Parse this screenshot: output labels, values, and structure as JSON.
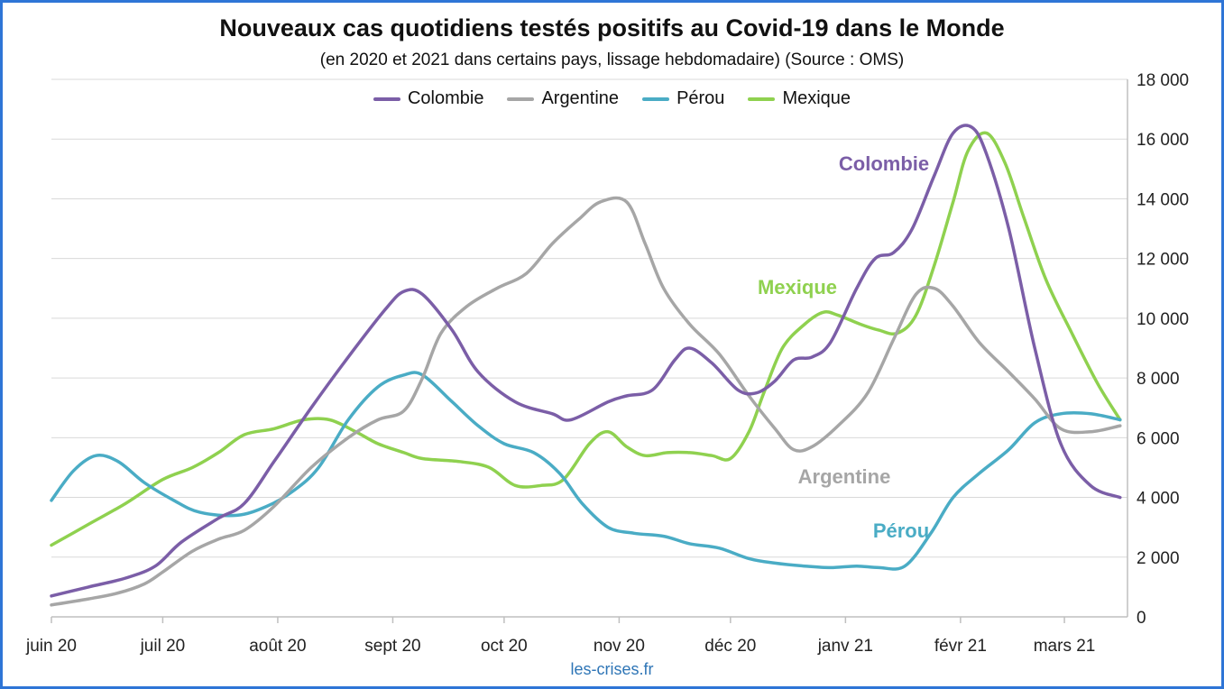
{
  "chart_data": {
    "type": "line",
    "title": "Nouveaux cas quotidiens testés positifs au Covid-19 dans le Monde",
    "subtitle": "(en 2020 et 2021 dans certains pays, lissage hebdomadaire) (Source : OMS)",
    "source_footer": "les-crises.fr",
    "x_tick_labels": [
      "juin 20",
      "juil 20",
      "août 20",
      "sept 20",
      "oct 20",
      "nov 20",
      "déc 20",
      "janv 21",
      "févr 21",
      "mars 21"
    ],
    "x_range_days": [
      0,
      290
    ],
    "x_tick_positions_days": [
      0,
      30,
      61,
      92,
      122,
      153,
      183,
      214,
      245,
      273
    ],
    "ylim": [
      0,
      18000
    ],
    "y_ticks": [
      0,
      2000,
      4000,
      6000,
      8000,
      10000,
      12000,
      14000,
      16000,
      18000
    ],
    "y_tick_labels": [
      "0",
      "2 000",
      "4 000",
      "6 000",
      "8 000",
      "10 000",
      "12 000",
      "14 000",
      "16 000",
      "18 000"
    ],
    "y_axis_side": "right",
    "grid": true,
    "legend_position": "top",
    "series": [
      {
        "name": "Colombie",
        "color": "#7b5ea7",
        "label": "Colombie",
        "points": [
          [
            0,
            700
          ],
          [
            10,
            1000
          ],
          [
            20,
            1300
          ],
          [
            28,
            1700
          ],
          [
            35,
            2500
          ],
          [
            45,
            3300
          ],
          [
            52,
            3800
          ],
          [
            60,
            5200
          ],
          [
            70,
            7000
          ],
          [
            80,
            8700
          ],
          [
            90,
            10300
          ],
          [
            95,
            10900
          ],
          [
            100,
            10800
          ],
          [
            108,
            9600
          ],
          [
            115,
            8200
          ],
          [
            125,
            7200
          ],
          [
            135,
            6800
          ],
          [
            140,
            6600
          ],
          [
            150,
            7200
          ],
          [
            155,
            7400
          ],
          [
            162,
            7600
          ],
          [
            168,
            8600
          ],
          [
            172,
            9000
          ],
          [
            178,
            8500
          ],
          [
            185,
            7600
          ],
          [
            190,
            7500
          ],
          [
            195,
            7900
          ],
          [
            200,
            8600
          ],
          [
            205,
            8700
          ],
          [
            210,
            9200
          ],
          [
            217,
            11000
          ],
          [
            222,
            12000
          ],
          [
            227,
            12200
          ],
          [
            232,
            13000
          ],
          [
            238,
            14800
          ],
          [
            243,
            16200
          ],
          [
            248,
            16400
          ],
          [
            252,
            15500
          ],
          [
            258,
            13000
          ],
          [
            265,
            9000
          ],
          [
            272,
            5800
          ],
          [
            280,
            4400
          ],
          [
            288,
            4000
          ]
        ]
      },
      {
        "name": "Argentine",
        "color": "#a6a6a6",
        "label": "Argentine",
        "points": [
          [
            0,
            400
          ],
          [
            10,
            600
          ],
          [
            18,
            800
          ],
          [
            25,
            1100
          ],
          [
            30,
            1500
          ],
          [
            38,
            2200
          ],
          [
            45,
            2600
          ],
          [
            52,
            2900
          ],
          [
            60,
            3700
          ],
          [
            70,
            5000
          ],
          [
            80,
            6000
          ],
          [
            88,
            6600
          ],
          [
            95,
            6900
          ],
          [
            100,
            8000
          ],
          [
            105,
            9500
          ],
          [
            112,
            10400
          ],
          [
            120,
            11000
          ],
          [
            128,
            11500
          ],
          [
            135,
            12500
          ],
          [
            142,
            13300
          ],
          [
            148,
            13900
          ],
          [
            155,
            13900
          ],
          [
            160,
            12500
          ],
          [
            165,
            11000
          ],
          [
            172,
            9800
          ],
          [
            180,
            8800
          ],
          [
            188,
            7400
          ],
          [
            195,
            6300
          ],
          [
            200,
            5600
          ],
          [
            205,
            5700
          ],
          [
            212,
            6400
          ],
          [
            220,
            7500
          ],
          [
            227,
            9300
          ],
          [
            233,
            10800
          ],
          [
            238,
            11000
          ],
          [
            243,
            10400
          ],
          [
            250,
            9200
          ],
          [
            258,
            8200
          ],
          [
            265,
            7300
          ],
          [
            272,
            6300
          ],
          [
            280,
            6200
          ],
          [
            288,
            6400
          ]
        ]
      },
      {
        "name": "Pérou",
        "color": "#4aacc5",
        "label": "Pérou",
        "points": [
          [
            0,
            3900
          ],
          [
            6,
            4900
          ],
          [
            12,
            5400
          ],
          [
            18,
            5200
          ],
          [
            25,
            4500
          ],
          [
            33,
            3900
          ],
          [
            40,
            3500
          ],
          [
            50,
            3400
          ],
          [
            58,
            3700
          ],
          [
            65,
            4200
          ],
          [
            72,
            5000
          ],
          [
            80,
            6600
          ],
          [
            88,
            7700
          ],
          [
            95,
            8100
          ],
          [
            100,
            8100
          ],
          [
            108,
            7200
          ],
          [
            115,
            6400
          ],
          [
            122,
            5800
          ],
          [
            130,
            5500
          ],
          [
            137,
            4800
          ],
          [
            143,
            3800
          ],
          [
            150,
            3000
          ],
          [
            157,
            2800
          ],
          [
            165,
            2700
          ],
          [
            172,
            2450
          ],
          [
            180,
            2300
          ],
          [
            188,
            1950
          ],
          [
            195,
            1800
          ],
          [
            203,
            1700
          ],
          [
            210,
            1650
          ],
          [
            217,
            1700
          ],
          [
            223,
            1650
          ],
          [
            230,
            1700
          ],
          [
            237,
            2800
          ],
          [
            243,
            4000
          ],
          [
            250,
            4800
          ],
          [
            258,
            5600
          ],
          [
            265,
            6500
          ],
          [
            272,
            6800
          ],
          [
            280,
            6800
          ],
          [
            288,
            6600
          ]
        ]
      },
      {
        "name": "Mexique",
        "color": "#8fd14f",
        "label": "Mexique",
        "points": [
          [
            0,
            2400
          ],
          [
            10,
            3100
          ],
          [
            20,
            3800
          ],
          [
            30,
            4600
          ],
          [
            38,
            5000
          ],
          [
            45,
            5500
          ],
          [
            52,
            6100
          ],
          [
            60,
            6300
          ],
          [
            68,
            6600
          ],
          [
            75,
            6600
          ],
          [
            82,
            6200
          ],
          [
            88,
            5800
          ],
          [
            95,
            5500
          ],
          [
            100,
            5300
          ],
          [
            110,
            5200
          ],
          [
            118,
            5000
          ],
          [
            125,
            4400
          ],
          [
            132,
            4400
          ],
          [
            138,
            4600
          ],
          [
            145,
            5800
          ],
          [
            150,
            6200
          ],
          [
            155,
            5700
          ],
          [
            160,
            5400
          ],
          [
            166,
            5500
          ],
          [
            172,
            5500
          ],
          [
            178,
            5400
          ],
          [
            183,
            5300
          ],
          [
            188,
            6200
          ],
          [
            192,
            7500
          ],
          [
            197,
            9000
          ],
          [
            203,
            9800
          ],
          [
            208,
            10200
          ],
          [
            212,
            10100
          ],
          [
            218,
            9800
          ],
          [
            223,
            9600
          ],
          [
            228,
            9500
          ],
          [
            233,
            10100
          ],
          [
            238,
            11800
          ],
          [
            243,
            13900
          ],
          [
            247,
            15600
          ],
          [
            252,
            16200
          ],
          [
            257,
            15200
          ],
          [
            262,
            13400
          ],
          [
            268,
            11300
          ],
          [
            275,
            9500
          ],
          [
            282,
            7800
          ],
          [
            288,
            6600
          ]
        ]
      }
    ]
  }
}
